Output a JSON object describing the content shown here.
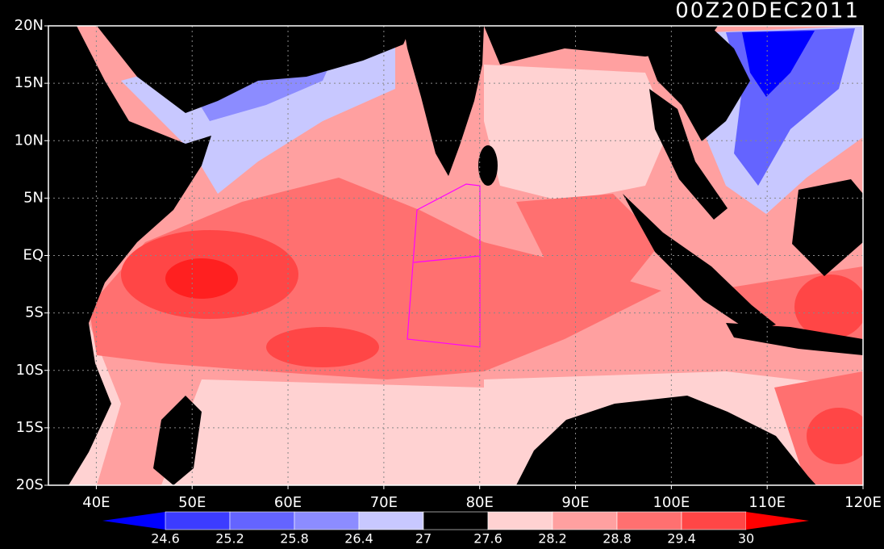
{
  "map": {
    "title": "00Z20DEC2011",
    "lonlim": [
      35,
      120
    ],
    "latlim": [
      -20,
      20
    ],
    "lonticks": [
      {
        "value": 40,
        "label": "40E"
      },
      {
        "value": 50,
        "label": "50E"
      },
      {
        "value": 60,
        "label": "60E"
      },
      {
        "value": 70,
        "label": "70E"
      },
      {
        "value": 80,
        "label": "80E"
      },
      {
        "value": 90,
        "label": "90E"
      },
      {
        "value": 100,
        "label": "100E"
      },
      {
        "value": 110,
        "label": "110E"
      },
      {
        "value": 120,
        "label": "120E"
      }
    ],
    "latticks": [
      {
        "value": 20,
        "label": "20N"
      },
      {
        "value": 15,
        "label": "15N"
      },
      {
        "value": 10,
        "label": "10N"
      },
      {
        "value": 5,
        "label": "5N"
      },
      {
        "value": 0,
        "label": "EQ"
      },
      {
        "value": -5,
        "label": "5S"
      },
      {
        "value": -10,
        "label": "10S"
      },
      {
        "value": -15,
        "label": "15S"
      },
      {
        "value": -20,
        "label": "20S"
      }
    ],
    "grid": true,
    "colorbar": {
      "levels": [
        24.6,
        25.2,
        25.8,
        26.4,
        27,
        27.6,
        28.2,
        28.8,
        29.4,
        30
      ],
      "colors": [
        "#0000ff",
        "#3c3cff",
        "#6464ff",
        "#8c8cff",
        "#c8c8ff",
        "#000000",
        "#ffd2d2",
        "#ffa0a0",
        "#ff7070",
        "#ff4646",
        "#ff0000"
      ]
    }
  }
}
